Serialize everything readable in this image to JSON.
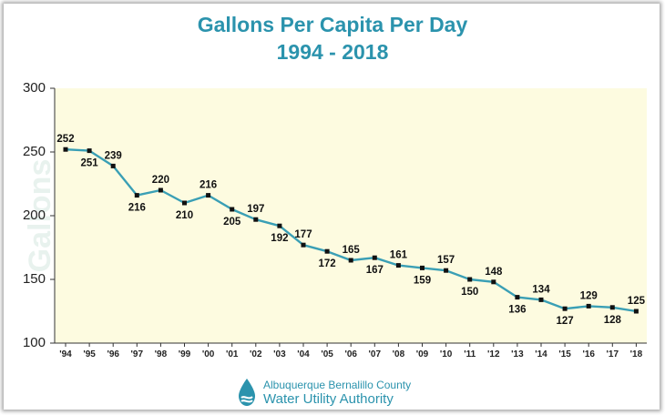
{
  "chart_data": {
    "type": "line",
    "title_line1": "Gallons Per Capita Per Day",
    "title_line2": "1994 - 2018",
    "ylabel": "Gallons",
    "xlabel": "",
    "ylim": [
      100,
      300
    ],
    "yticks": [
      "100",
      "150",
      "200",
      "250",
      "300"
    ],
    "grid": false,
    "categories": [
      "'94",
      "'95",
      "'96",
      "'97",
      "'98",
      "'99",
      "'00",
      "'01",
      "'02",
      "'03",
      "'04",
      "'05",
      "'06",
      "'07",
      "'08",
      "'09",
      "'10",
      "'11",
      "'12",
      "'13",
      "'14",
      "'15",
      "'16",
      "'17",
      "'18"
    ],
    "values": [
      252,
      251,
      239,
      216,
      220,
      210,
      216,
      205,
      197,
      192,
      177,
      172,
      165,
      167,
      161,
      159,
      157,
      150,
      148,
      136,
      134,
      127,
      129,
      128,
      125
    ],
    "label_side": [
      "above",
      "below",
      "above",
      "below",
      "above",
      "below",
      "above",
      "below",
      "above",
      "below",
      "above",
      "below",
      "above",
      "below",
      "above",
      "below",
      "above",
      "below",
      "above",
      "below",
      "above",
      "below",
      "above",
      "below",
      "above"
    ]
  },
  "colors": {
    "title": "#2b93ad",
    "line": "#3a9fb5",
    "plot_background": "#fdfbe0",
    "marker": "#111111"
  },
  "logo": {
    "line1": "Albuquerque Bernalillo County",
    "line2": "Water Utility Authority",
    "icon": "water-drop-icon"
  }
}
